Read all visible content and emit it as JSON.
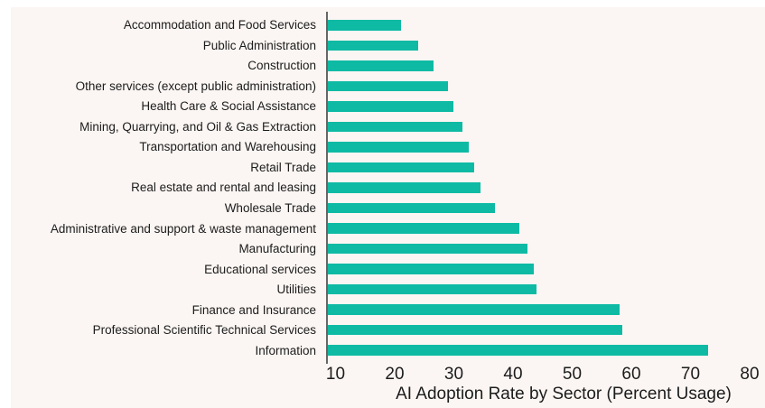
{
  "chart_data": {
    "type": "bar",
    "orientation": "horizontal",
    "title": "",
    "xlabel": "AI Adoption Rate by Sector (Percent Usage)",
    "ylabel": "",
    "categories": [
      "Accommodation and Food Services",
      "Public Administration",
      "Construction",
      "Other services (except public administration)",
      "Health Care & Social Assistance",
      "Mining, Quarrying, and Oil & Gas Extraction",
      "Transportation and Warehousing",
      "Retail Trade",
      "Real estate and rental and leasing",
      "Wholesale Trade",
      "Administrative and support & waste management",
      "Manufacturing",
      "Educational services",
      "Utilities",
      "Finance and Insurance",
      "Professional Scientific Technical Services",
      "Information"
    ],
    "values": [
      21,
      24,
      26.5,
      29,
      30,
      31.5,
      32.5,
      33.5,
      34.5,
      37,
      41,
      42.5,
      43.5,
      44,
      58,
      58.5,
      73
    ],
    "x_ticks": [
      10,
      20,
      30,
      40,
      50,
      60,
      70,
      80
    ],
    "xlim": [
      8.4,
      82
    ],
    "grid": false,
    "legend": false,
    "colors": {
      "bar": "#0ebaa4",
      "axis": "#666666",
      "text": "#1c1c1c",
      "plot_background": "#fbf6f3",
      "page_background": "#ffffff"
    }
  }
}
